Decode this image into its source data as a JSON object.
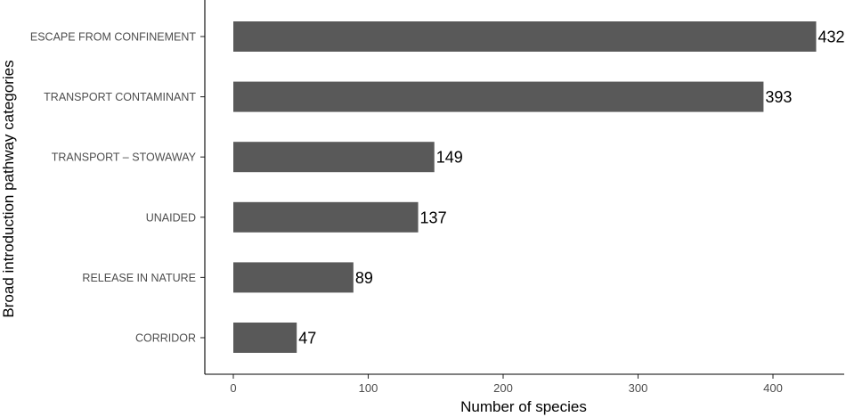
{
  "chart_data": {
    "type": "bar",
    "orientation": "horizontal",
    "categories": [
      "ESCAPE FROM CONFINEMENT",
      "TRANSPORT CONTAMINANT",
      "TRANSPORT – STOWAWAY",
      "UNAIDED",
      "RELEASE IN NATURE",
      "CORRIDOR"
    ],
    "values": [
      432,
      393,
      149,
      137,
      89,
      47
    ],
    "xlabel": "Number of species",
    "ylabel": "Broad introduction pathway categories",
    "xlim": [
      -21.6,
      453.6
    ],
    "xticks": [
      0,
      100,
      200,
      300,
      400
    ],
    "bar_color": "#595959",
    "grid": false
  }
}
